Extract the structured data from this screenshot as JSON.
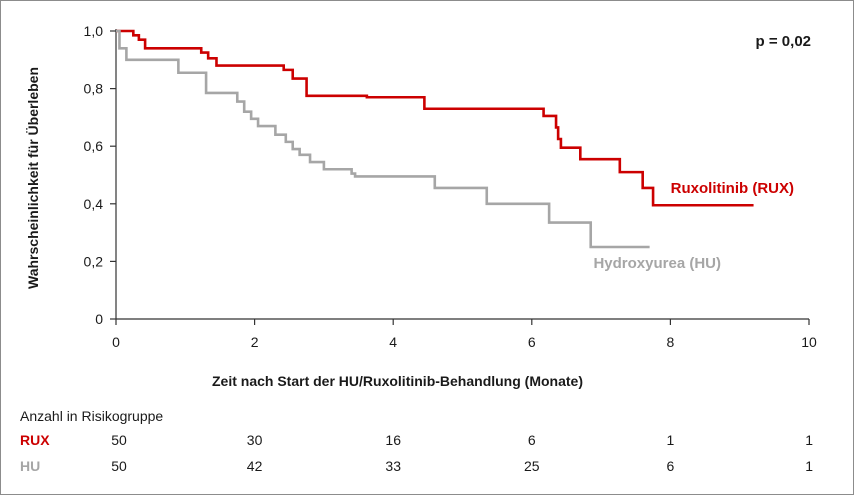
{
  "chart_data": {
    "type": "line",
    "title": "",
    "xlabel": "Zeit nach Start der HU/Ruxolitinib-Behandlung (Monate)",
    "ylabel": "Wahrscheinlichkeit für Überleben",
    "xlim": [
      0,
      10
    ],
    "ylim": [
      0,
      1
    ],
    "x_ticks": [
      "0",
      "2",
      "4",
      "6",
      "8",
      "10"
    ],
    "y_ticks": [
      "0",
      "0,2",
      "0,4",
      "0,6",
      "0,8",
      "1,0"
    ],
    "annotation": "p = 0,02",
    "grid": false,
    "series": [
      {
        "name": "Ruxolitinib (RUX)",
        "color": "#cc0000",
        "x": [
          0,
          0.25,
          0.33,
          0.42,
          1.23,
          1.33,
          1.45,
          2.42,
          2.55,
          2.75,
          3.62,
          4.45,
          6.17,
          6.35,
          6.38,
          6.42,
          6.7,
          7.27,
          7.6,
          7.75,
          9.2
        ],
        "y": [
          1.0,
          0.985,
          0.97,
          0.94,
          0.925,
          0.905,
          0.88,
          0.865,
          0.835,
          0.775,
          0.77,
          0.73,
          0.705,
          0.665,
          0.625,
          0.595,
          0.555,
          0.51,
          0.455,
          0.395,
          0.395
        ]
      },
      {
        "name": "Hydroxyurea (HU)",
        "color": "#a6a6a6",
        "x": [
          0,
          0.05,
          0.15,
          0.9,
          1.3,
          1.75,
          1.85,
          1.95,
          2.05,
          2.3,
          2.45,
          2.55,
          2.65,
          2.8,
          3.0,
          3.4,
          3.45,
          4.6,
          5.35,
          6.25,
          6.85,
          7.7
        ],
        "y": [
          1.0,
          0.94,
          0.9,
          0.855,
          0.785,
          0.755,
          0.72,
          0.695,
          0.67,
          0.64,
          0.615,
          0.59,
          0.57,
          0.545,
          0.52,
          0.505,
          0.495,
          0.455,
          0.4,
          0.335,
          0.25,
          0.25
        ]
      }
    ]
  },
  "risk_table": {
    "title": "Anzahl in Risikogruppe",
    "rows": [
      {
        "label": "RUX",
        "color": "#cc0000",
        "values": [
          "50",
          "30",
          "16",
          "6",
          "1",
          "1"
        ]
      },
      {
        "label": "HU",
        "color": "#a6a6a6",
        "values": [
          "50",
          "42",
          "33",
          "25",
          "6",
          "1"
        ]
      }
    ]
  }
}
